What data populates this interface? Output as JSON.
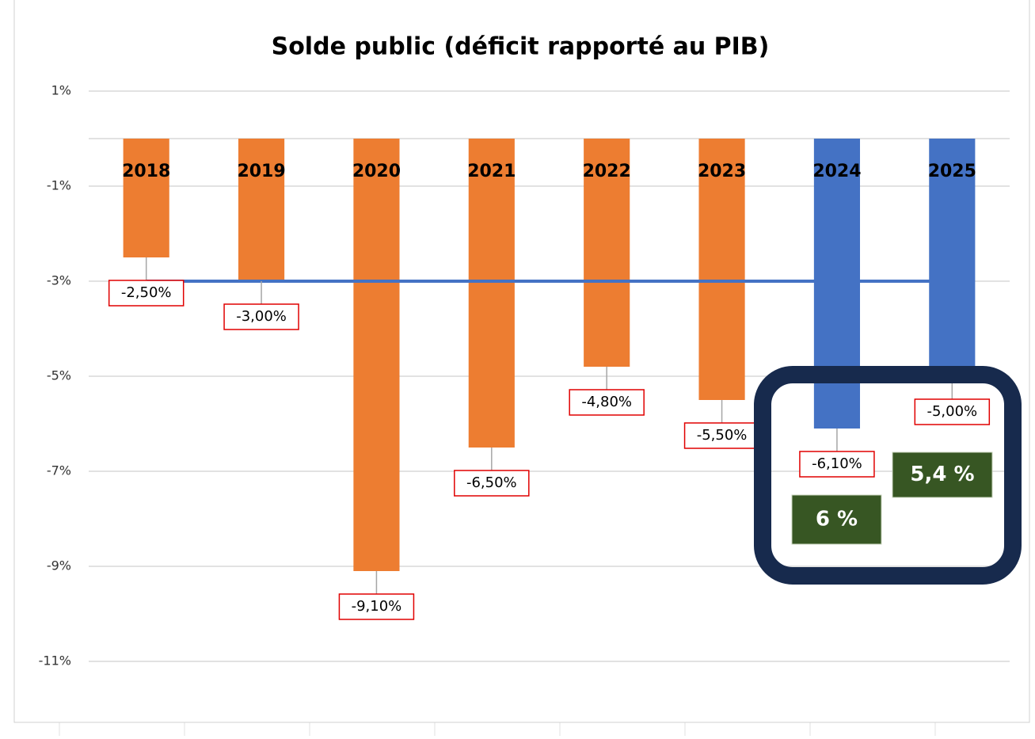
{
  "chart_data": {
    "type": "bar",
    "title": "Solde public (déficit rapporté au PIB)",
    "categories": [
      "2018",
      "2019",
      "2020",
      "2021",
      "2022",
      "2023",
      "2024",
      "2025"
    ],
    "series": [
      {
        "values": [
          -2.5,
          -3,
          -9.1,
          -6.5,
          -4.8,
          -5.5,
          -6.1,
          -5
        ],
        "value_labels": [
          "-2,50%",
          "-3,00%",
          "-9,10%",
          "-6,50%",
          "-4,80%",
          "-5,50%",
          "-6,10%",
          "-5,00%"
        ],
        "colors": [
          "#ed7d31",
          "#ed7d31",
          "#ed7d31",
          "#ed7d31",
          "#ed7d31",
          "#ed7d31",
          "#4472c4",
          "#4472c4"
        ]
      },
      {
        "type": "line",
        "color": "#4472c4",
        "values": [
          -3,
          -3,
          -3,
          -3,
          -3,
          -3,
          -3,
          -3
        ]
      }
    ],
    "ylim": [
      -12,
      1.5
    ],
    "yticks": [
      {
        "value": 1,
        "label": "1%"
      },
      {
        "value": -1,
        "label": "-1%"
      },
      {
        "value": -3,
        "label": "-3%"
      },
      {
        "value": -5,
        "label": "-5%"
      },
      {
        "value": -7,
        "label": "-7%"
      },
      {
        "value": -9,
        "label": "-9%"
      },
      {
        "value": -11,
        "label": "-11%"
      }
    ],
    "grid": true,
    "annotations": [
      {
        "text": "6 %"
      },
      {
        "text": "5,4 %"
      }
    ]
  }
}
